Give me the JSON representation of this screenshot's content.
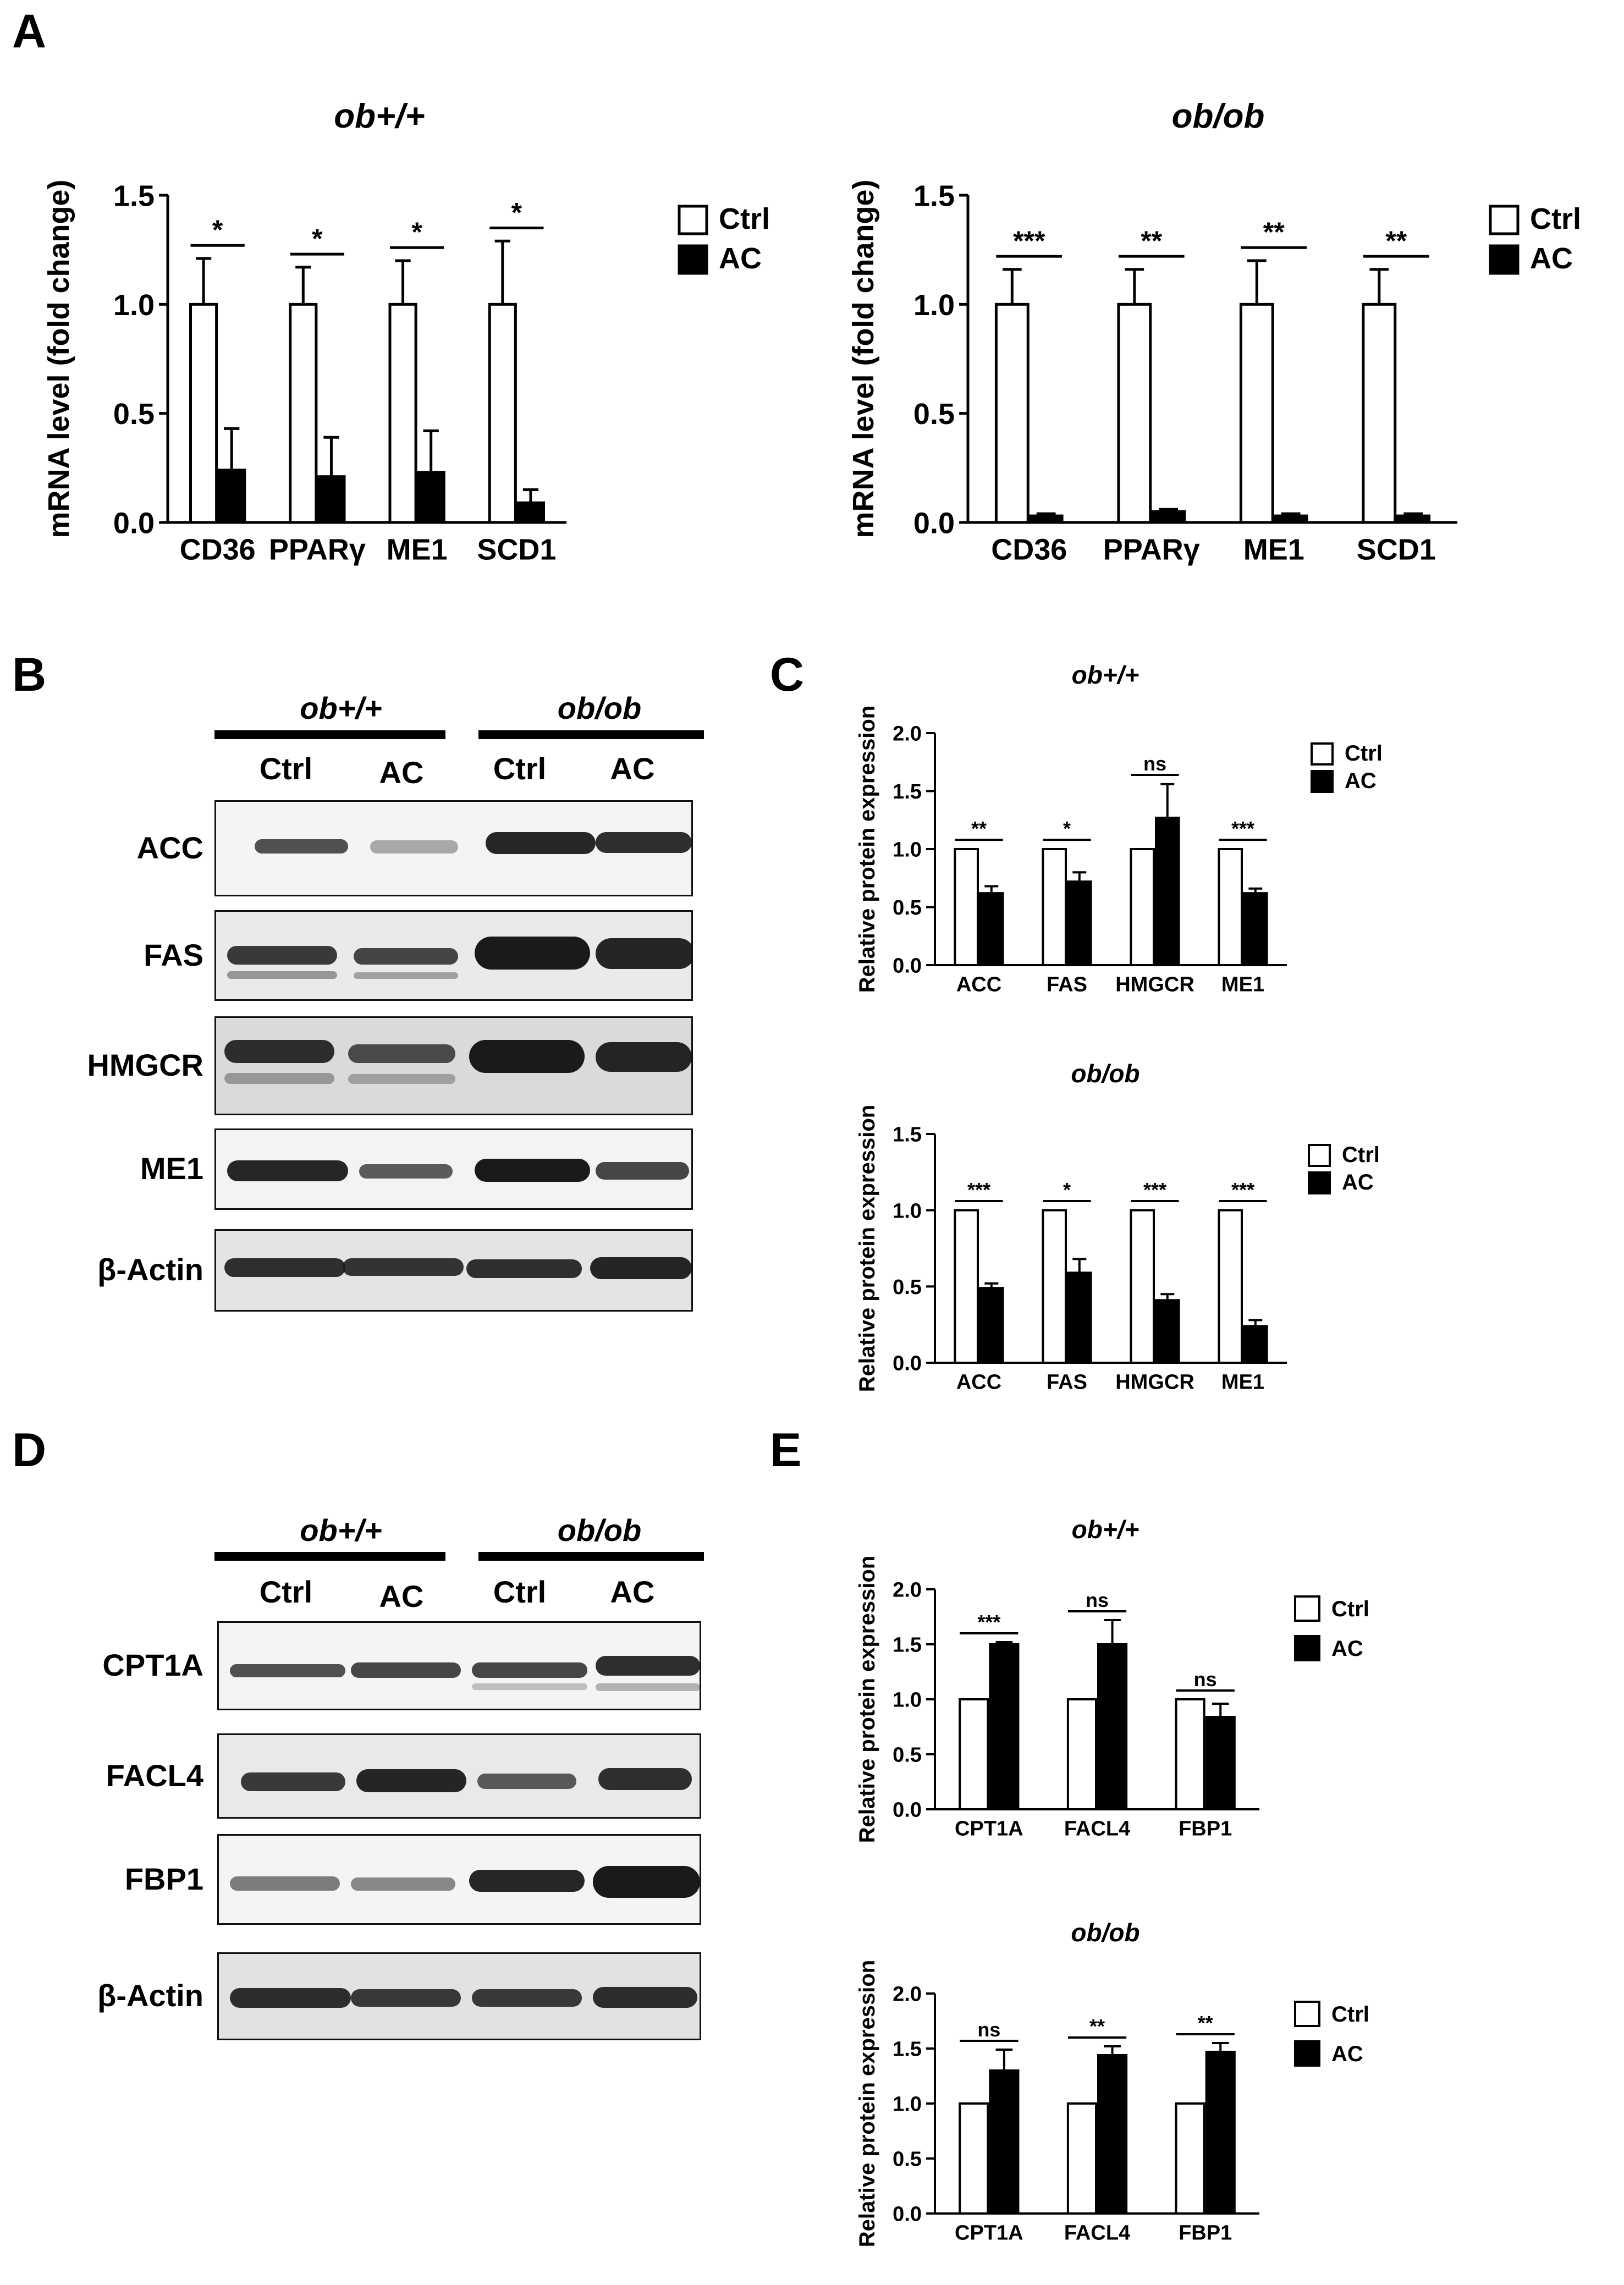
{
  "panels": {
    "A": "A",
    "B": "B",
    "C": "C",
    "D": "D",
    "E": "E"
  },
  "blot_B": {
    "groups": [
      "ob+/+",
      "ob/ob"
    ],
    "lanes": [
      "Ctrl",
      "AC",
      "Ctrl",
      "AC"
    ],
    "rows": [
      "ACC",
      "FAS",
      "HMGCR",
      "ME1",
      "β-Actin"
    ]
  },
  "blot_D": {
    "groups": [
      "ob+/+",
      "ob/ob"
    ],
    "lanes": [
      "Ctrl",
      "AC",
      "Ctrl",
      "AC"
    ],
    "rows": [
      "CPT1A",
      "FACL4",
      "FBP1",
      "β-Actin"
    ]
  },
  "colors": {
    "ctrl": "#ffffff",
    "ac": "#000000",
    "axis": "#000000"
  },
  "chart_data": [
    {
      "id": "A-left",
      "type": "bar",
      "title": "ob+/+",
      "ylabel": "mRNA level (fold change)",
      "ylim": [
        0,
        1.5
      ],
      "yticks": [
        "0.0",
        "0.5",
        "1.0",
        "1.5"
      ],
      "categories": [
        "CD36",
        "PPARγ",
        "ME1",
        "SCD1"
      ],
      "series": [
        {
          "name": "Ctrl",
          "values": [
            1.0,
            1.0,
            1.0,
            1.0
          ],
          "errors": [
            0.21,
            0.17,
            0.2,
            0.29
          ]
        },
        {
          "name": "AC",
          "values": [
            0.24,
            0.21,
            0.23,
            0.09
          ],
          "errors": [
            0.19,
            0.18,
            0.19,
            0.06
          ]
        }
      ],
      "significance": [
        "*",
        "*",
        "*",
        "*"
      ]
    },
    {
      "id": "A-right",
      "type": "bar",
      "title": "ob/ob",
      "ylabel": "mRNA level (fold change)",
      "ylim": [
        0,
        1.5
      ],
      "yticks": [
        "0.0",
        "0.5",
        "1.0",
        "1.5"
      ],
      "categories": [
        "CD36",
        "PPARγ",
        "ME1",
        "SCD1"
      ],
      "series": [
        {
          "name": "Ctrl",
          "values": [
            1.0,
            1.0,
            1.0,
            1.0
          ],
          "errors": [
            0.16,
            0.16,
            0.2,
            0.16
          ]
        },
        {
          "name": "AC",
          "values": [
            0.03,
            0.05,
            0.03,
            0.03
          ],
          "errors": [
            0.01,
            0.01,
            0.01,
            0.01
          ]
        }
      ],
      "significance": [
        "***",
        "**",
        "**",
        "**"
      ]
    },
    {
      "id": "C-top",
      "type": "bar",
      "title": "ob+/+",
      "ylabel": "Relative protein expression",
      "ylim": [
        0,
        2.0
      ],
      "yticks": [
        "0.0",
        "0.5",
        "1.0",
        "1.5",
        "2.0"
      ],
      "categories": [
        "ACC",
        "FAS",
        "HMGCR",
        "ME1"
      ],
      "series": [
        {
          "name": "Ctrl",
          "values": [
            1.0,
            1.0,
            1.0,
            1.0
          ],
          "errors": [
            0,
            0,
            0,
            0
          ]
        },
        {
          "name": "AC",
          "values": [
            0.62,
            0.72,
            1.27,
            0.62
          ],
          "errors": [
            0.06,
            0.08,
            0.29,
            0.04
          ]
        }
      ],
      "significance": [
        "**",
        "*",
        "ns",
        "***"
      ]
    },
    {
      "id": "C-bottom",
      "type": "bar",
      "title": "ob/ob",
      "ylabel": "Relative protein expression",
      "ylim": [
        0,
        1.5
      ],
      "yticks": [
        "0.0",
        "0.5",
        "1.0",
        "1.5"
      ],
      "categories": [
        "ACC",
        "FAS",
        "HMGCR",
        "ME1"
      ],
      "series": [
        {
          "name": "Ctrl",
          "values": [
            1.0,
            1.0,
            1.0,
            1.0
          ],
          "errors": [
            0,
            0,
            0,
            0
          ]
        },
        {
          "name": "AC",
          "values": [
            0.49,
            0.59,
            0.41,
            0.24
          ],
          "errors": [
            0.03,
            0.09,
            0.04,
            0.04
          ]
        }
      ],
      "significance": [
        "***",
        "*",
        "***",
        "***"
      ]
    },
    {
      "id": "E-top",
      "type": "bar",
      "title": "ob+/+",
      "ylabel": "Relative protein expression",
      "ylim": [
        0,
        2.0
      ],
      "yticks": [
        "0.0",
        "0.5",
        "1.0",
        "1.5",
        "2.0"
      ],
      "categories": [
        "CPT1A",
        "FACL4",
        "FBP1"
      ],
      "series": [
        {
          "name": "Ctrl",
          "values": [
            1.0,
            1.0,
            1.0
          ],
          "errors": [
            0,
            0,
            0
          ]
        },
        {
          "name": "AC",
          "values": [
            1.5,
            1.5,
            0.84
          ],
          "errors": [
            0.02,
            0.22,
            0.12
          ]
        }
      ],
      "significance": [
        "***",
        "ns",
        "ns"
      ]
    },
    {
      "id": "E-bottom",
      "type": "bar",
      "title": "ob/ob",
      "ylabel": "Relative protein expression",
      "ylim": [
        0,
        2.0
      ],
      "yticks": [
        "0.0",
        "0.5",
        "1.0",
        "1.5",
        "2.0"
      ],
      "categories": [
        "CPT1A",
        "FACL4",
        "FBP1"
      ],
      "series": [
        {
          "name": "Ctrl",
          "values": [
            1.0,
            1.0,
            1.0
          ],
          "errors": [
            0,
            0,
            0
          ]
        },
        {
          "name": "AC",
          "values": [
            1.3,
            1.44,
            1.47
          ],
          "errors": [
            0.19,
            0.08,
            0.08
          ]
        }
      ],
      "significance": [
        "ns",
        "**",
        "**"
      ]
    }
  ]
}
